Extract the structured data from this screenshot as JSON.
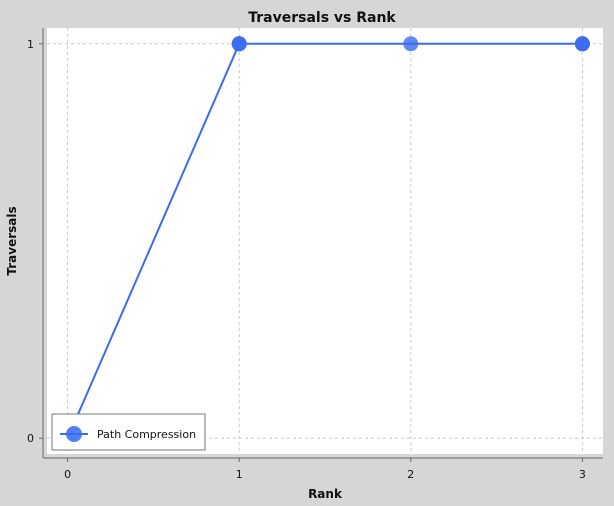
{
  "chart_data": {
    "type": "line",
    "title": "Traversals vs Rank",
    "xlabel": "Rank",
    "ylabel": "Traversals",
    "xlim": [
      -0.12,
      3.12
    ],
    "ylim": [
      -0.04,
      1.04
    ],
    "x_ticks": [
      "0",
      "1",
      "2",
      "3"
    ],
    "y_ticks": [
      "0",
      "1"
    ],
    "grid": true,
    "legend_position": "bottom-left",
    "series": [
      {
        "name": "Path Compression",
        "color": "#3b6cf0",
        "points": [
          {
            "x": 0,
            "y": 0
          },
          {
            "x": 1,
            "y": 1
          },
          {
            "x": 1,
            "y": 1
          },
          {
            "x": 1,
            "y": 1
          },
          {
            "x": 2,
            "y": 1
          },
          {
            "x": 3,
            "y": 1
          },
          {
            "x": 3,
            "y": 1
          },
          {
            "x": 3,
            "y": 1
          }
        ]
      }
    ]
  }
}
